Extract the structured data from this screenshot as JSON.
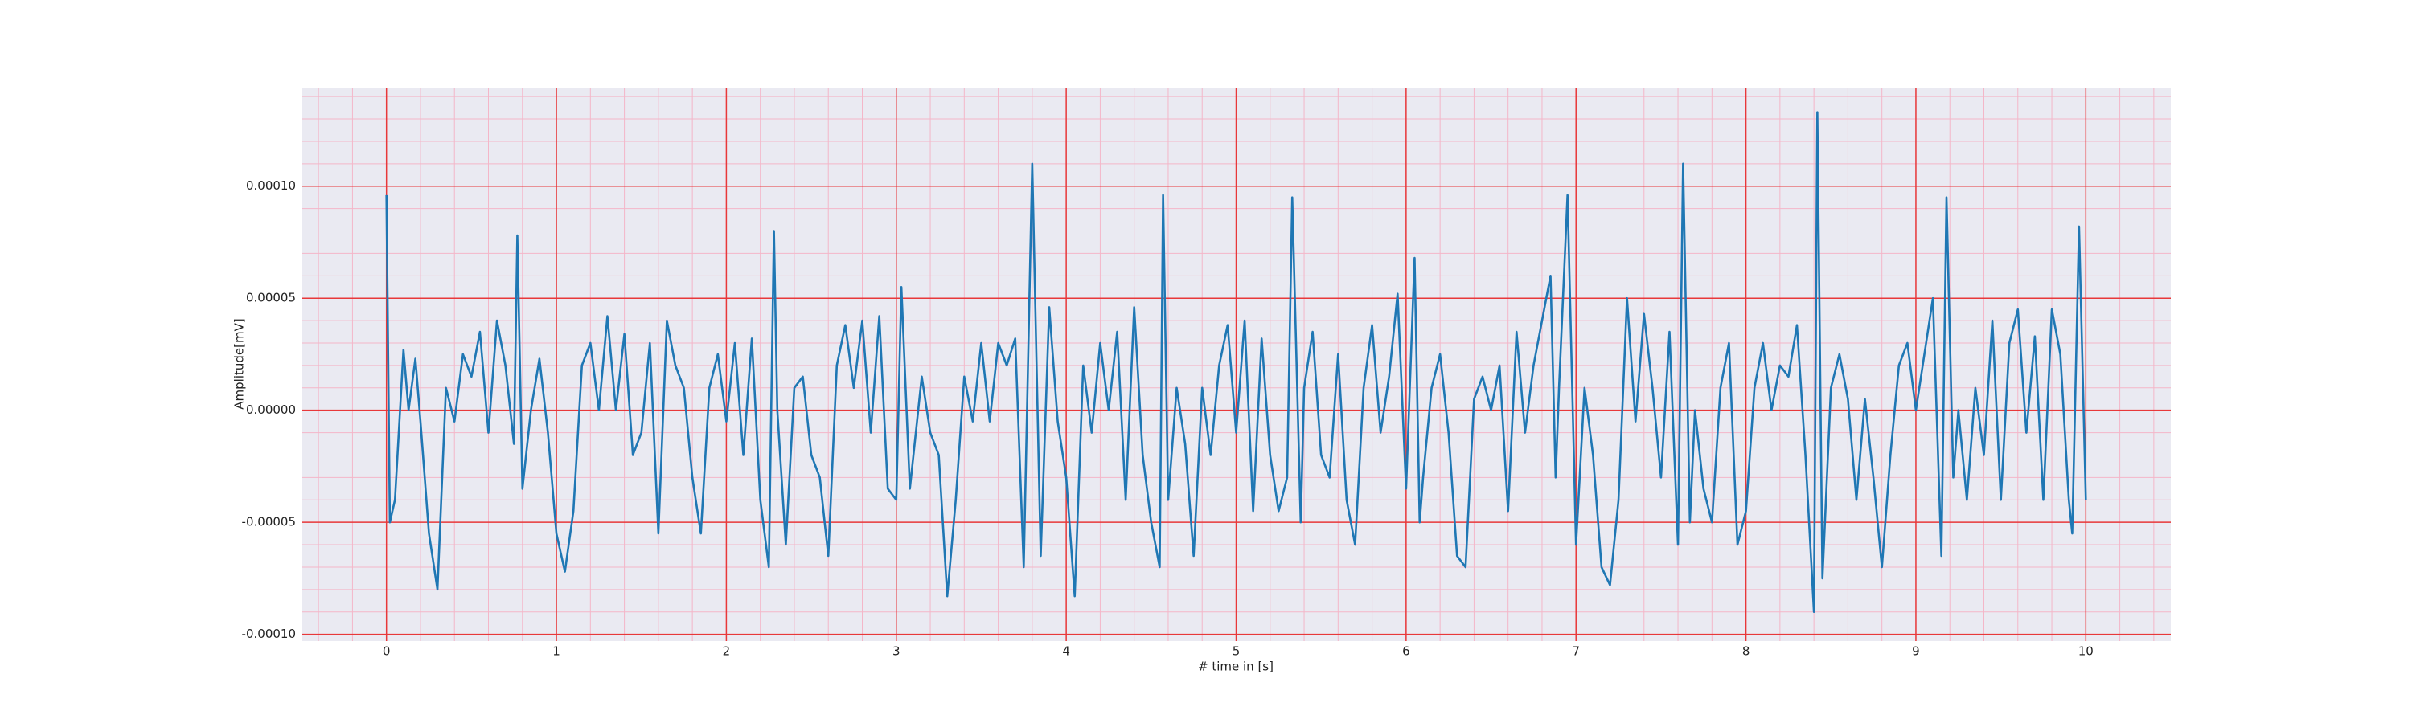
{
  "chart_data": {
    "type": "line",
    "xlabel": "# time in [s]",
    "ylabel": "Amplitude[mV]",
    "x": [
      0,
      0.02,
      0.05,
      0.1,
      0.13,
      0.17,
      0.2,
      0.25,
      0.3,
      0.35,
      0.4,
      0.45,
      0.5,
      0.55,
      0.6,
      0.65,
      0.7,
      0.75,
      0.77,
      0.8,
      0.85,
      0.9,
      0.95,
      1.0,
      1.05,
      1.1,
      1.15,
      1.2,
      1.25,
      1.3,
      1.35,
      1.4,
      1.45,
      1.5,
      1.55,
      1.6,
      1.65,
      1.7,
      1.75,
      1.8,
      1.85,
      1.9,
      1.95,
      2.0,
      2.05,
      2.1,
      2.15,
      2.2,
      2.25,
      2.28,
      2.3,
      2.35,
      2.4,
      2.45,
      2.5,
      2.55,
      2.6,
      2.65,
      2.7,
      2.75,
      2.8,
      2.85,
      2.9,
      2.95,
      3.0,
      3.03,
      3.08,
      3.15,
      3.2,
      3.25,
      3.3,
      3.35,
      3.4,
      3.45,
      3.5,
      3.55,
      3.6,
      3.65,
      3.7,
      3.75,
      3.8,
      3.85,
      3.9,
      3.95,
      4.0,
      4.05,
      4.1,
      4.15,
      4.2,
      4.25,
      4.3,
      4.35,
      4.4,
      4.45,
      4.5,
      4.55,
      4.57,
      4.6,
      4.65,
      4.7,
      4.75,
      4.8,
      4.85,
      4.9,
      4.95,
      5.0,
      5.05,
      5.1,
      5.15,
      5.2,
      5.25,
      5.3,
      5.33,
      5.38,
      5.4,
      5.45,
      5.5,
      5.55,
      5.6,
      5.65,
      5.7,
      5.75,
      5.8,
      5.85,
      5.9,
      5.95,
      6.0,
      6.05,
      6.08,
      6.1,
      6.15,
      6.2,
      6.25,
      6.3,
      6.35,
      6.4,
      6.45,
      6.5,
      6.55,
      6.6,
      6.65,
      6.7,
      6.75,
      6.8,
      6.85,
      6.88,
      6.9,
      6.95,
      7.0,
      7.05,
      7.1,
      7.15,
      7.2,
      7.25,
      7.3,
      7.35,
      7.4,
      7.45,
      7.5,
      7.55,
      7.6,
      7.63,
      7.67,
      7.7,
      7.75,
      7.8,
      7.85,
      7.9,
      7.95,
      8.0,
      8.05,
      8.1,
      8.15,
      8.2,
      8.25,
      8.3,
      8.35,
      8.4,
      8.42,
      8.45,
      8.5,
      8.55,
      8.6,
      8.65,
      8.7,
      8.75,
      8.8,
      8.85,
      8.9,
      8.95,
      9.0,
      9.05,
      9.1,
      9.15,
      9.18,
      9.22,
      9.25,
      9.3,
      9.35,
      9.4,
      9.45,
      9.5,
      9.55,
      9.6,
      9.65,
      9.7,
      9.75,
      9.8,
      9.85,
      9.9,
      9.92,
      9.96,
      10.0
    ],
    "series": [
      {
        "name": "signal",
        "color": "#1f77b4",
        "values": [
          9.6e-05,
          -5e-05,
          -4e-05,
          2.7e-05,
          0,
          2.3e-05,
          -5e-06,
          -5.5e-05,
          -8e-05,
          1e-05,
          -5e-06,
          2.5e-05,
          1.5e-05,
          3.5e-05,
          -1e-05,
          4e-05,
          2e-05,
          -1.5e-05,
          7.8e-05,
          -3.5e-05,
          0,
          2.3e-05,
          -1e-05,
          -5.5e-05,
          -7.2e-05,
          -4.5e-05,
          2e-05,
          3e-05,
          0,
          4.2e-05,
          0,
          3.4e-05,
          -2e-05,
          -1e-05,
          3e-05,
          -5.5e-05,
          4e-05,
          2e-05,
          1e-05,
          -3e-05,
          -5.5e-05,
          1e-05,
          2.5e-05,
          -5e-06,
          3e-05,
          -2e-05,
          3.2e-05,
          -4e-05,
          -7e-05,
          8e-05,
          0,
          -6e-05,
          1e-05,
          1.5e-05,
          -2e-05,
          -3e-05,
          -6.5e-05,
          2e-05,
          3.8e-05,
          1e-05,
          4e-05,
          -1e-05,
          4.2e-05,
          -3.5e-05,
          -4e-05,
          5.5e-05,
          -3.5e-05,
          1.5e-05,
          -1e-05,
          -2e-05,
          -8.3e-05,
          -4e-05,
          1.5e-05,
          -5e-06,
          3e-05,
          -5e-06,
          3e-05,
          2e-05,
          3.2e-05,
          -7e-05,
          0.00011,
          -6.5e-05,
          4.6e-05,
          -5e-06,
          -3e-05,
          -8.3e-05,
          2e-05,
          -1e-05,
          3e-05,
          0,
          3.5e-05,
          -4e-05,
          4.6e-05,
          -2e-05,
          -5e-05,
          -7e-05,
          9.6e-05,
          -4e-05,
          1e-05,
          -1.5e-05,
          -6.5e-05,
          1e-05,
          -2e-05,
          2e-05,
          3.8e-05,
          -1e-05,
          4e-05,
          -4.5e-05,
          3.2e-05,
          -2e-05,
          -4.5e-05,
          -3e-05,
          9.5e-05,
          -5e-05,
          1e-05,
          3.5e-05,
          -2e-05,
          -3e-05,
          2.5e-05,
          -4e-05,
          -6e-05,
          1e-05,
          3.8e-05,
          -1e-05,
          1.5e-05,
          5.2e-05,
          -3.5e-05,
          6.8e-05,
          -5e-05,
          -3e-05,
          1e-05,
          2.5e-05,
          -1e-05,
          -6.5e-05,
          -7e-05,
          5e-06,
          1.5e-05,
          0,
          2e-05,
          -4.5e-05,
          3.5e-05,
          -1e-05,
          2e-05,
          4e-05,
          6e-05,
          -3e-05,
          1e-05,
          9.6e-05,
          -6e-05,
          1e-05,
          -2e-05,
          -7e-05,
          -7.8e-05,
          -4e-05,
          5e-05,
          -5e-06,
          4.3e-05,
          1e-05,
          -3e-05,
          3.5e-05,
          -6e-05,
          0.00011,
          -5e-05,
          0,
          -3.5e-05,
          -5e-05,
          1e-05,
          3e-05,
          -6e-05,
          -4.5e-05,
          1e-05,
          3e-05,
          0,
          2e-05,
          1.5e-05,
          3.8e-05,
          -2e-05,
          -9e-05,
          0.000133,
          -7.5e-05,
          1e-05,
          2.5e-05,
          5e-06,
          -4e-05,
          5e-06,
          -3e-05,
          -7e-05,
          -2e-05,
          2e-05,
          3e-05,
          0,
          2.5e-05,
          5e-05,
          -6.5e-05,
          9.5e-05,
          -3e-05,
          0,
          -4e-05,
          1e-05,
          -2e-05,
          4e-05,
          -4e-05,
          3e-05,
          4.5e-05,
          -1e-05,
          3.3e-05,
          -4e-05,
          4.5e-05,
          2.5e-05,
          -4e-05,
          -5.5e-05,
          8.2e-05,
          -4e-05
        ]
      }
    ],
    "xlim": [
      -0.5,
      10.5
    ],
    "ylim": [
      -0.000103,
      0.000144
    ],
    "xticks": [
      0,
      1,
      2,
      3,
      4,
      5,
      6,
      7,
      8,
      9,
      10
    ],
    "yticks": [
      {
        "value": -0.0001,
        "label": "-0.00010"
      },
      {
        "value": -5e-05,
        "label": "-0.00005"
      },
      {
        "value": 0,
        "label": "0.00000"
      },
      {
        "value": 5e-05,
        "label": "0.00005"
      },
      {
        "value": 0.0001,
        "label": "0.00010"
      }
    ],
    "grid": true,
    "minor_grid": true
  }
}
